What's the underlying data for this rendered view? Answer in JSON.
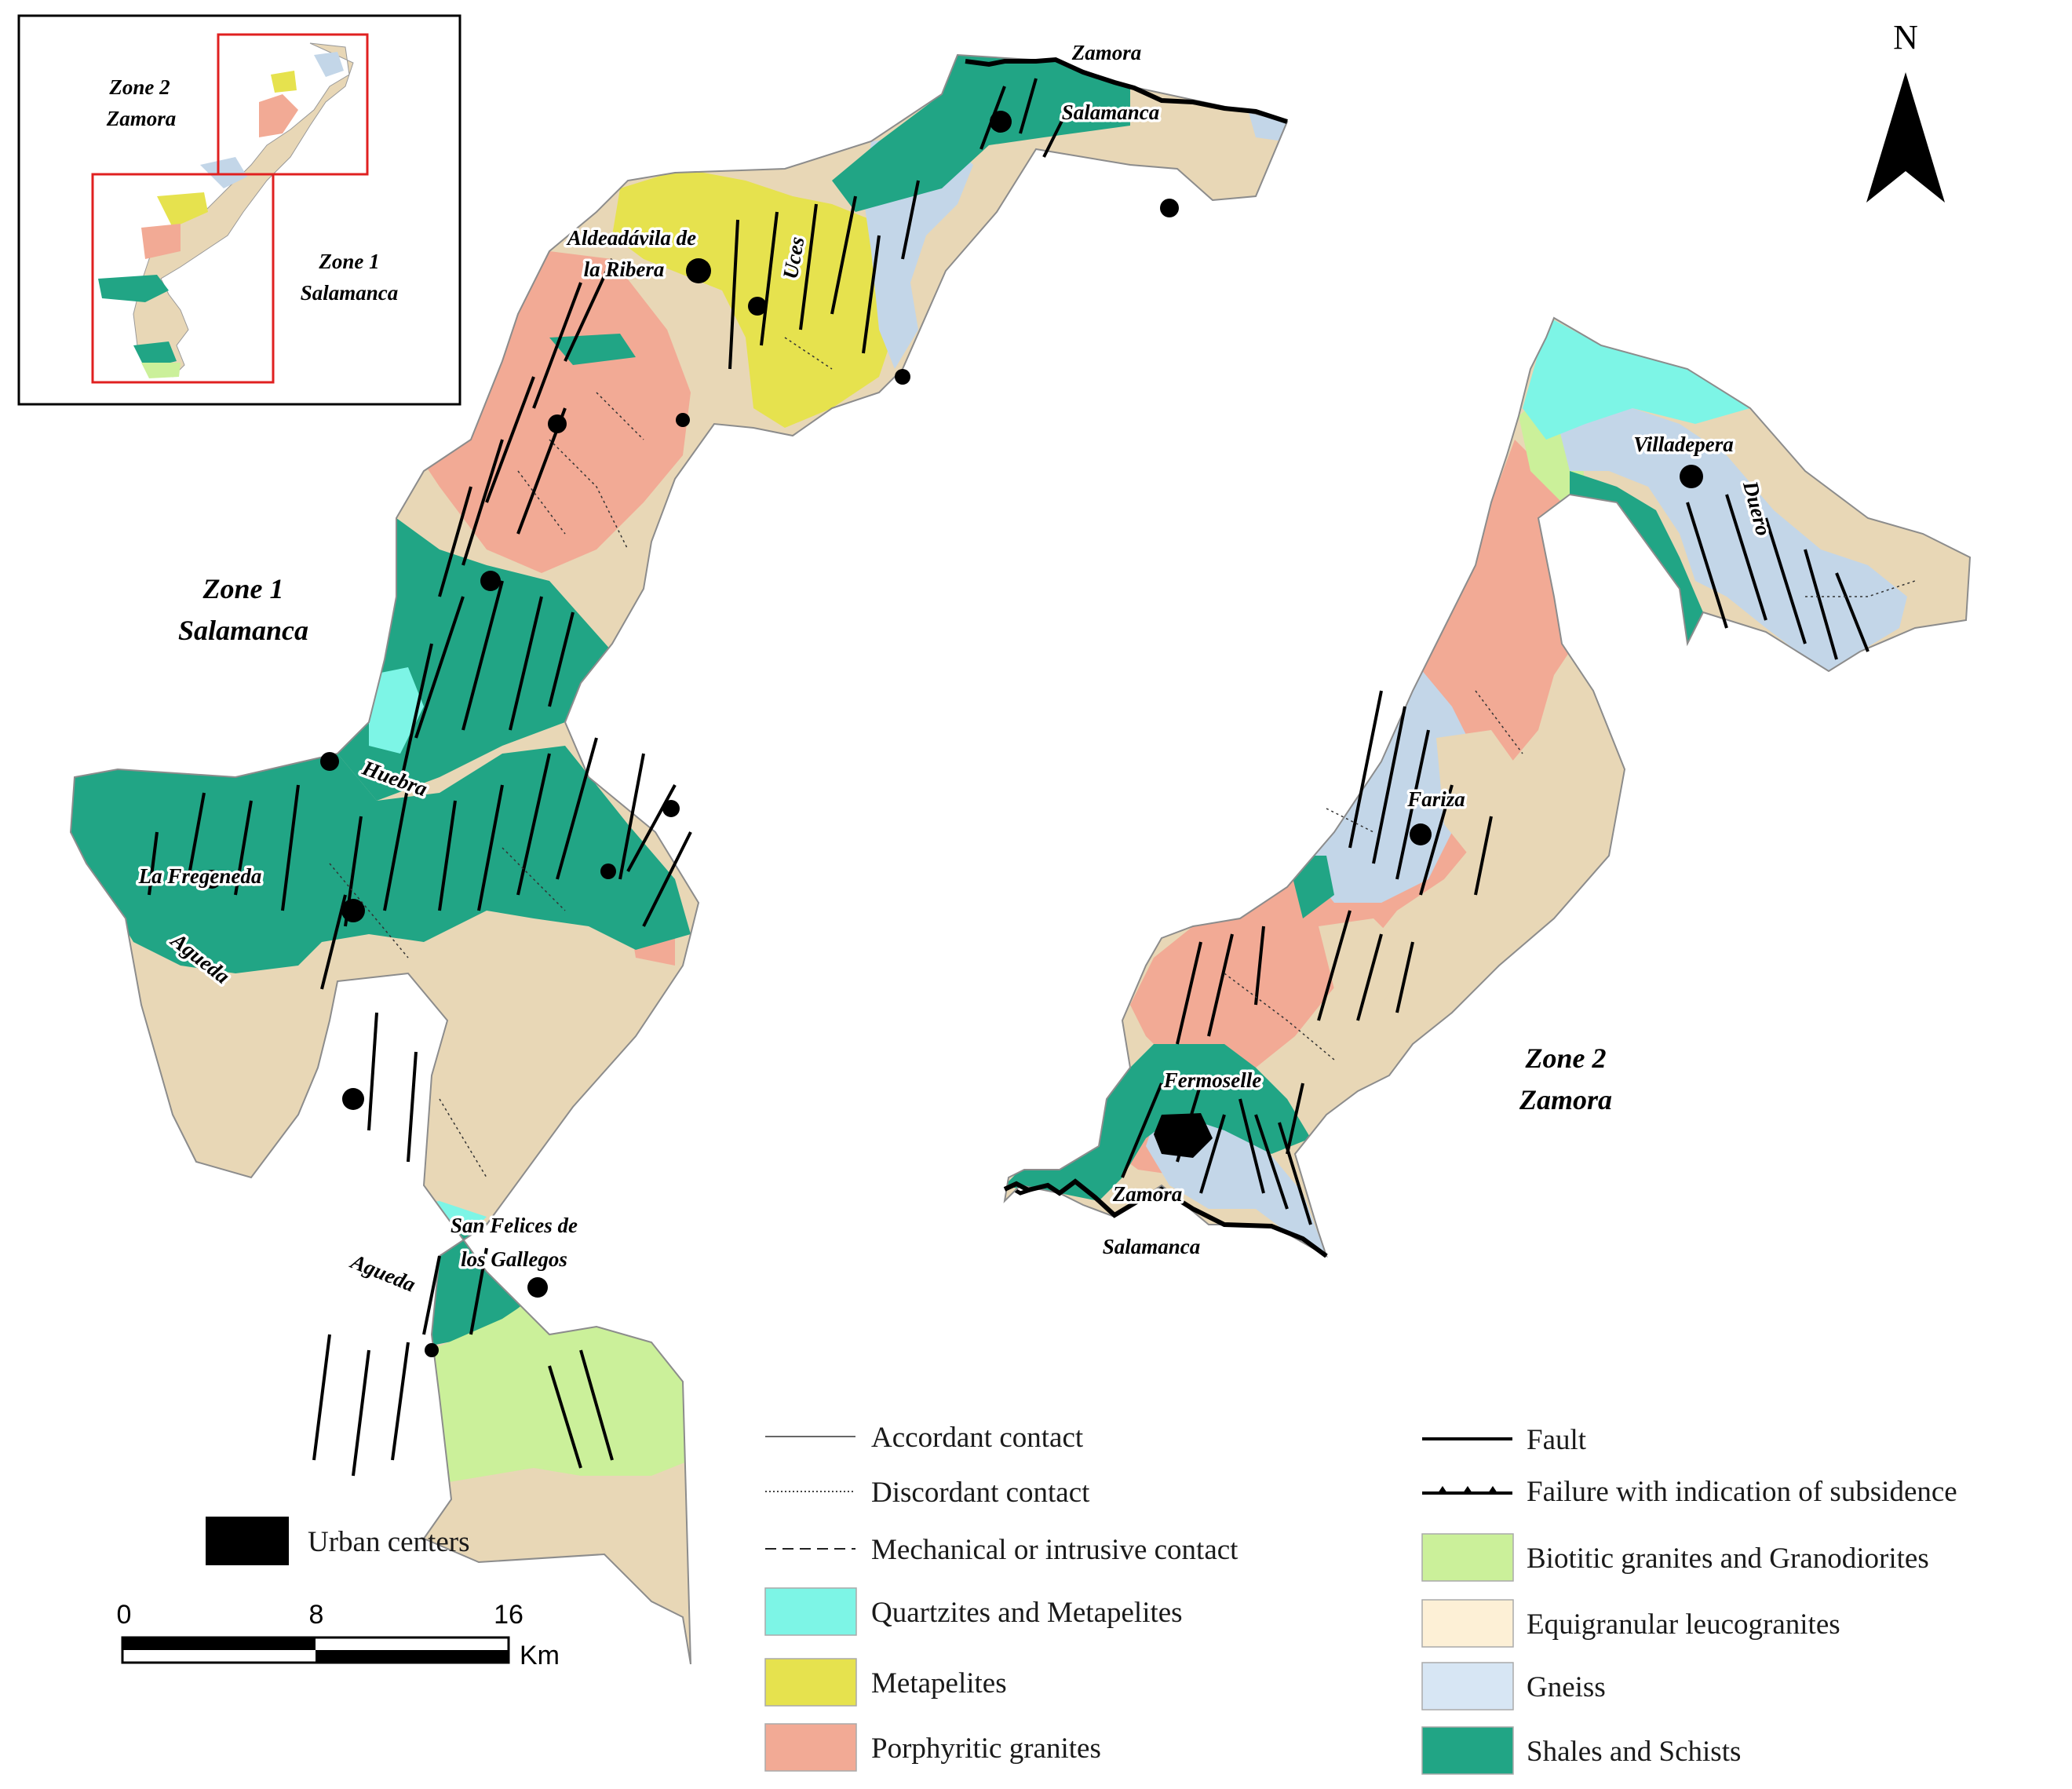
{
  "colors": {
    "quartzites": "#7df5e6",
    "metapelites": "#e6e24e",
    "porphyritic": "#f2aa95",
    "biotitic": "#cbf09a",
    "equigranular": "#e8d7b6",
    "gneiss": "#c3d6e8",
    "shales": "#21a585",
    "urban": "#000000"
  },
  "inset": {
    "zone2_line1": "Zone 2",
    "zone2_line2": "Zamora",
    "zone1_line1": "Zone 1",
    "zone1_line2": "Salamanca"
  },
  "north_label": "N",
  "zone1": {
    "title_line1": "Zone 1",
    "title_line2": "Salamanca",
    "places": {
      "zamora": "Zamora",
      "salamanca": "Salamanca",
      "aldeadavila_line1": "Aldeadávila de",
      "aldeadavila_line2": "la Ribera",
      "uces": "Uces",
      "huebra": "Huebra",
      "fregeneda": "La Fregeneda",
      "agueda_1": "Agueda",
      "agueda_2": "Agueda",
      "sanfelices_line1": "San Felices de",
      "sanfelices_line2": "los Gallegos"
    }
  },
  "zone2": {
    "title_line1": "Zone 2",
    "title_line2": "Zamora",
    "places": {
      "villadepera": "Villadepera",
      "duero": "Duero",
      "fariza": "Fariza",
      "fermoselle": "Fermoselle",
      "zamora": "Zamora",
      "salamanca": "Salamanca"
    }
  },
  "scale_bar": {
    "ticks": [
      "0",
      "8",
      "16"
    ],
    "unit": "Km",
    "urban_label": "Urban centers"
  },
  "legend": {
    "accordant": "Accordant contact",
    "discordant": "Discordant contact",
    "mechanical": "Mechanical or intrusive contact",
    "quartzites": "Quartzites and Metapelites",
    "metapelites": "Metapelites",
    "porphyritic": "Porphyritic granites",
    "fault": "Fault",
    "failure": "Failure with indication of subsidence",
    "biotitic": "Biotitic granites and Granodiorites",
    "equigranular": "Equigranular leucogranites",
    "gneiss": "Gneiss",
    "shales": "Shales and Schists"
  }
}
